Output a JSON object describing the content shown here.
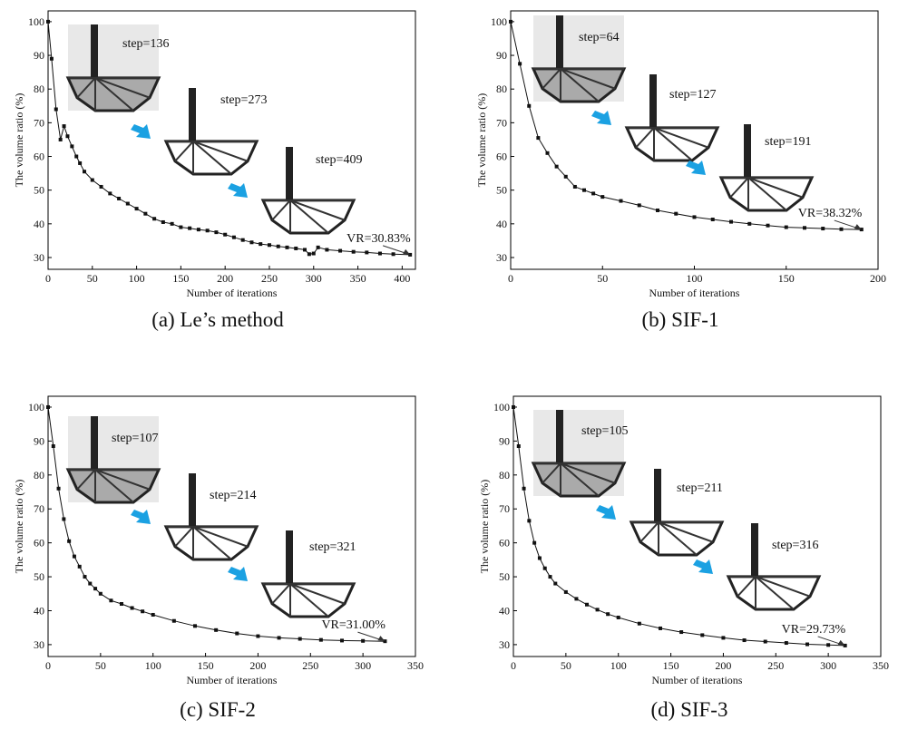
{
  "chart_data": [
    {
      "type": "line",
      "caption": "(a)  Le’s method",
      "xlabel": "Number of iterations",
      "ylabel": "The volume ratio (%)",
      "x": [
        0,
        4,
        9,
        14,
        18,
        22,
        27,
        32,
        36,
        41,
        50,
        60,
        70,
        80,
        90,
        100,
        110,
        120,
        130,
        140,
        150,
        160,
        170,
        180,
        190,
        200,
        210,
        220,
        230,
        240,
        250,
        260,
        270,
        280,
        290,
        295,
        300,
        305,
        315,
        330,
        345,
        360,
        375,
        390,
        409
      ],
      "values": [
        100,
        89,
        74,
        65,
        69,
        66,
        63,
        60,
        58,
        55.5,
        53,
        51,
        49,
        47.5,
        46,
        44.5,
        43,
        41.5,
        40.5,
        40,
        39,
        38.7,
        38.3,
        38,
        37.5,
        36.8,
        36,
        35.2,
        34.5,
        34,
        33.7,
        33.3,
        33,
        32.7,
        32.3,
        31,
        31.2,
        33,
        32.3,
        32,
        31.7,
        31.5,
        31.2,
        31,
        30.83
      ],
      "color": "#111",
      "xlim": [
        0,
        415
      ],
      "ylim": [
        26.5,
        103.2
      ],
      "xticks": [
        0,
        50,
        100,
        150,
        200,
        250,
        300,
        350,
        400
      ],
      "yticks": [
        30,
        40,
        50,
        60,
        70,
        80,
        90,
        100
      ],
      "annotations": [
        "step=136",
        "step=273",
        "step=409",
        "VR=30.83%"
      ]
    },
    {
      "type": "line",
      "caption": "(b)  SIF-1",
      "xlabel": "Number of iterations",
      "ylabel": "The volume ratio (%)",
      "x": [
        0,
        5,
        10,
        15,
        20,
        25,
        30,
        35,
        40,
        45,
        50,
        60,
        70,
        80,
        90,
        100,
        110,
        120,
        130,
        140,
        150,
        160,
        170,
        180,
        191
      ],
      "values": [
        100,
        87.5,
        75,
        65.5,
        61,
        57,
        54,
        51,
        50,
        49,
        48,
        46.8,
        45.5,
        44,
        43,
        42,
        41.3,
        40.6,
        40,
        39.5,
        39,
        38.8,
        38.6,
        38.4,
        38.32
      ],
      "color": "#111",
      "xlim": [
        0,
        200
      ],
      "ylim": [
        26.5,
        103.2
      ],
      "xticks": [
        0,
        50,
        100,
        150,
        200
      ],
      "yticks": [
        30,
        40,
        50,
        60,
        70,
        80,
        90,
        100
      ],
      "annotations": [
        "step=64",
        "step=127",
        "step=191",
        "VR=38.32%"
      ]
    },
    {
      "type": "line",
      "caption": "(c)  SIF-2",
      "xlabel": "Number of iterations",
      "ylabel": "The volume ratio (%)",
      "x": [
        0,
        5,
        10,
        15,
        20,
        25,
        30,
        35,
        40,
        45,
        50,
        60,
        70,
        80,
        90,
        100,
        120,
        140,
        160,
        180,
        200,
        220,
        240,
        260,
        280,
        300,
        321
      ],
      "values": [
        100,
        88.5,
        76,
        67,
        60.5,
        56,
        53,
        50,
        48,
        46.5,
        45,
        43,
        42,
        40.8,
        39.8,
        38.8,
        37,
        35.5,
        34.3,
        33.3,
        32.5,
        32,
        31.7,
        31.4,
        31.2,
        31.1,
        31
      ],
      "color": "#111",
      "xlim": [
        0,
        350
      ],
      "ylim": [
        26.5,
        103.2
      ],
      "xticks": [
        0,
        50,
        100,
        150,
        200,
        250,
        300,
        350
      ],
      "yticks": [
        30,
        40,
        50,
        60,
        70,
        80,
        90,
        100
      ],
      "annotations": [
        "step=107",
        "step=214",
        "step=321",
        "VR=31.00%"
      ]
    },
    {
      "type": "line",
      "caption": "(d)  SIF-3",
      "xlabel": "Number of iterations",
      "ylabel": "The volume ratio (%)",
      "x": [
        0,
        5,
        10,
        15,
        20,
        25,
        30,
        35,
        40,
        50,
        60,
        70,
        80,
        90,
        100,
        120,
        140,
        160,
        180,
        200,
        220,
        240,
        260,
        280,
        300,
        316
      ],
      "values": [
        100,
        88.5,
        76,
        66.5,
        60,
        55.5,
        52.5,
        50,
        48,
        45.5,
        43.5,
        41.8,
        40.3,
        39,
        38,
        36.2,
        34.8,
        33.7,
        32.8,
        32,
        31.3,
        30.9,
        30.5,
        30.1,
        29.9,
        29.73
      ],
      "color": "#111",
      "xlim": [
        0,
        350
      ],
      "ylim": [
        26.5,
        103.2
      ],
      "xticks": [
        0,
        50,
        100,
        150,
        200,
        250,
        300,
        350
      ],
      "yticks": [
        30,
        40,
        50,
        60,
        70,
        80,
        90,
        100
      ],
      "annotations": [
        "step=105",
        "step=211",
        "step=316",
        "VR=29.73%"
      ]
    }
  ]
}
